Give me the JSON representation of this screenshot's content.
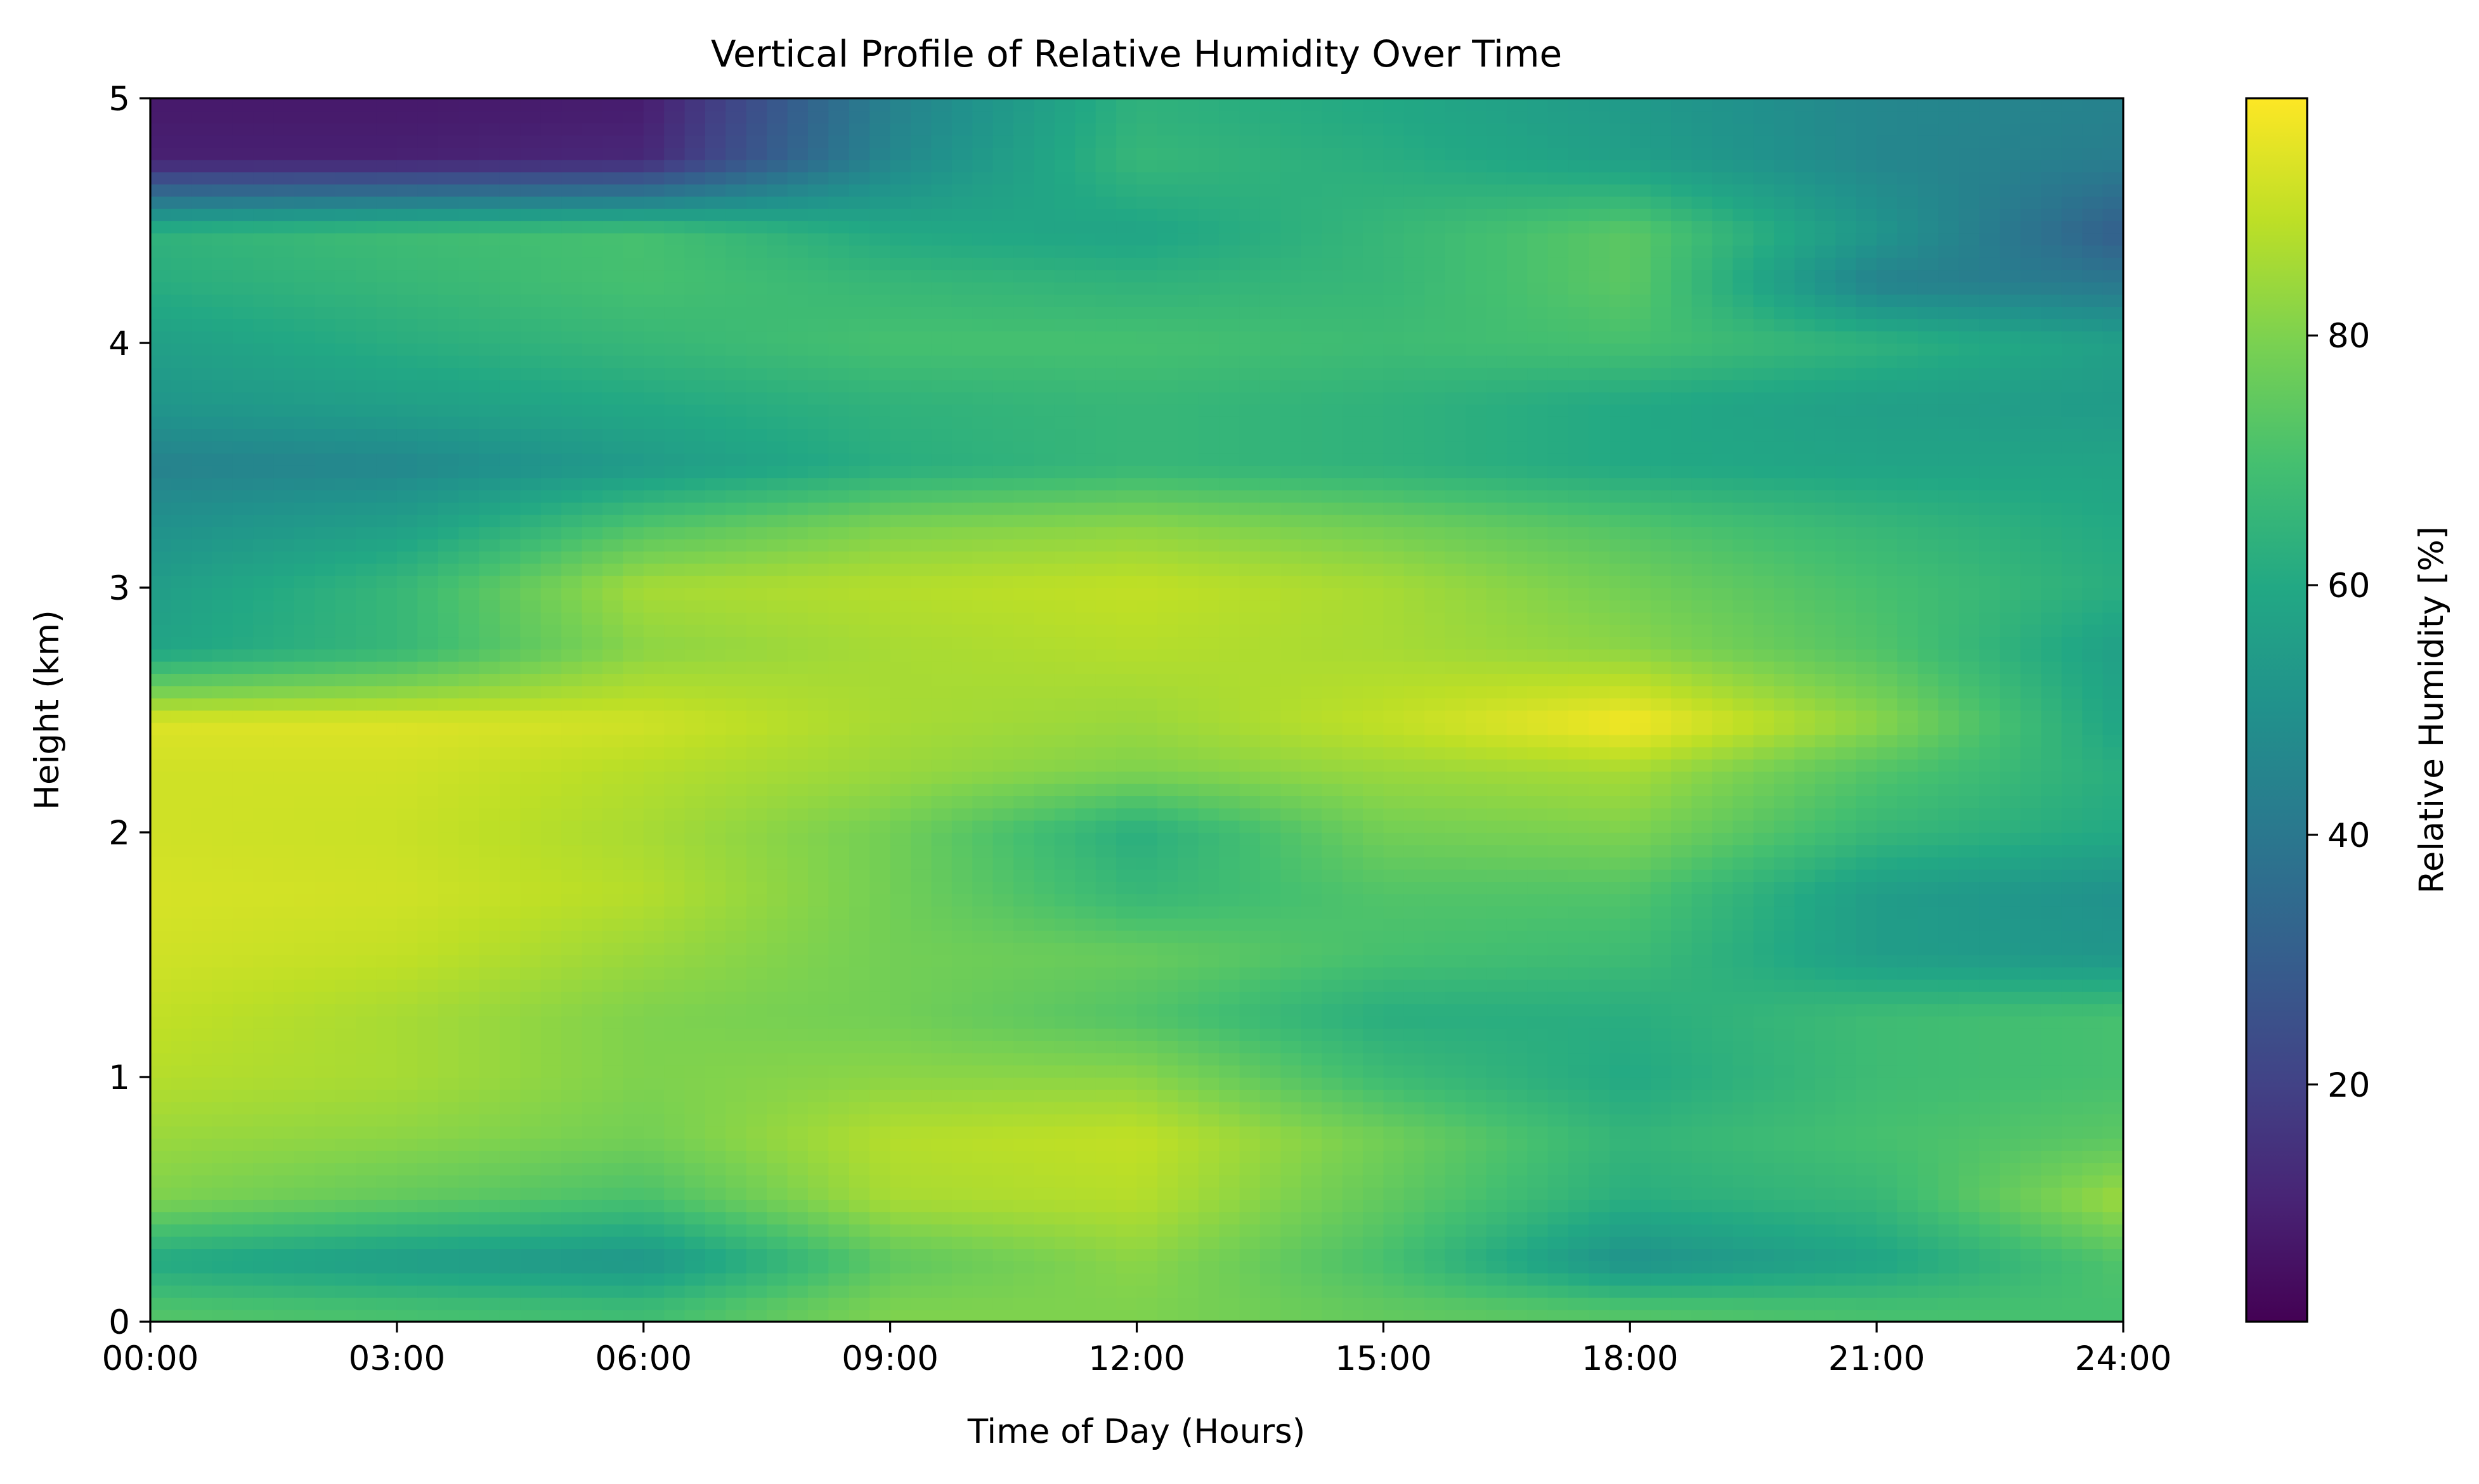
{
  "chart_data": {
    "type": "heatmap",
    "title": "Vertical Profile of Relative Humidity Over Time",
    "xlabel": "Time of Day (Hours)",
    "ylabel": "Height (km)",
    "colorbar_label": "Relative Humidity [%]",
    "colormap": "viridis",
    "x_range_hours": [
      0,
      24
    ],
    "y_range_km": [
      0,
      5
    ],
    "color_range_percent": [
      1,
      99
    ],
    "x_tick_hours": [
      0,
      3,
      6,
      9,
      12,
      15,
      18,
      21,
      24
    ],
    "x_ticks": [
      "00:00",
      "03:00",
      "06:00",
      "09:00",
      "12:00",
      "15:00",
      "18:00",
      "21:00",
      "24:00"
    ],
    "y_ticks": [
      "0",
      "1",
      "2",
      "3",
      "4",
      "5"
    ],
    "colorbar_ticks": [
      "20",
      "40",
      "60",
      "80"
    ],
    "colorbar_tick_values": [
      20,
      40,
      60,
      80
    ],
    "grid": false,
    "time_hours": [
      0,
      3,
      6,
      9,
      12,
      15,
      18,
      21,
      24
    ],
    "heights_km": [
      0.05,
      0.25,
      0.5,
      0.75,
      1.0,
      1.25,
      1.5,
      1.75,
      2.0,
      2.25,
      2.45,
      2.75,
      3.0,
      3.25,
      3.5,
      3.75,
      4.0,
      4.25,
      4.45,
      4.75,
      4.95
    ],
    "rh_percent": [
      [
        72,
        70,
        68,
        80,
        80,
        75,
        72,
        70,
        70
      ],
      [
        60,
        55,
        52,
        74,
        82,
        70,
        50,
        58,
        72
      ],
      [
        80,
        75,
        70,
        86,
        88,
        75,
        62,
        66,
        85
      ],
      [
        84,
        82,
        78,
        88,
        90,
        78,
        65,
        70,
        74
      ],
      [
        88,
        86,
        80,
        82,
        82,
        68,
        60,
        68,
        70
      ],
      [
        90,
        86,
        80,
        78,
        72,
        62,
        62,
        68,
        70
      ],
      [
        92,
        90,
        84,
        78,
        76,
        70,
        68,
        55,
        52
      ],
      [
        93,
        92,
        88,
        78,
        66,
        72,
        72,
        55,
        50
      ],
      [
        92,
        91,
        86,
        78,
        62,
        78,
        80,
        66,
        60
      ],
      [
        92,
        92,
        88,
        84,
        80,
        84,
        86,
        72,
        62
      ],
      [
        94,
        94,
        92,
        86,
        84,
        90,
        98,
        82,
        58
      ],
      [
        58,
        66,
        82,
        86,
        88,
        86,
        82,
        72,
        56
      ],
      [
        55,
        66,
        86,
        88,
        90,
        86,
        78,
        70,
        62
      ],
      [
        50,
        56,
        72,
        80,
        82,
        78,
        72,
        66,
        60
      ],
      [
        44,
        46,
        54,
        62,
        66,
        64,
        60,
        58,
        58
      ],
      [
        52,
        56,
        60,
        64,
        66,
        64,
        60,
        56,
        54
      ],
      [
        56,
        62,
        66,
        70,
        70,
        68,
        70,
        64,
        56
      ],
      [
        62,
        66,
        70,
        66,
        64,
        66,
        74,
        44,
        40
      ],
      [
        64,
        68,
        70,
        60,
        58,
        66,
        74,
        52,
        30
      ],
      [
        10,
        10,
        12,
        46,
        66,
        62,
        56,
        46,
        42
      ],
      [
        8,
        8,
        9,
        44,
        64,
        60,
        54,
        46,
        44
      ]
    ]
  }
}
